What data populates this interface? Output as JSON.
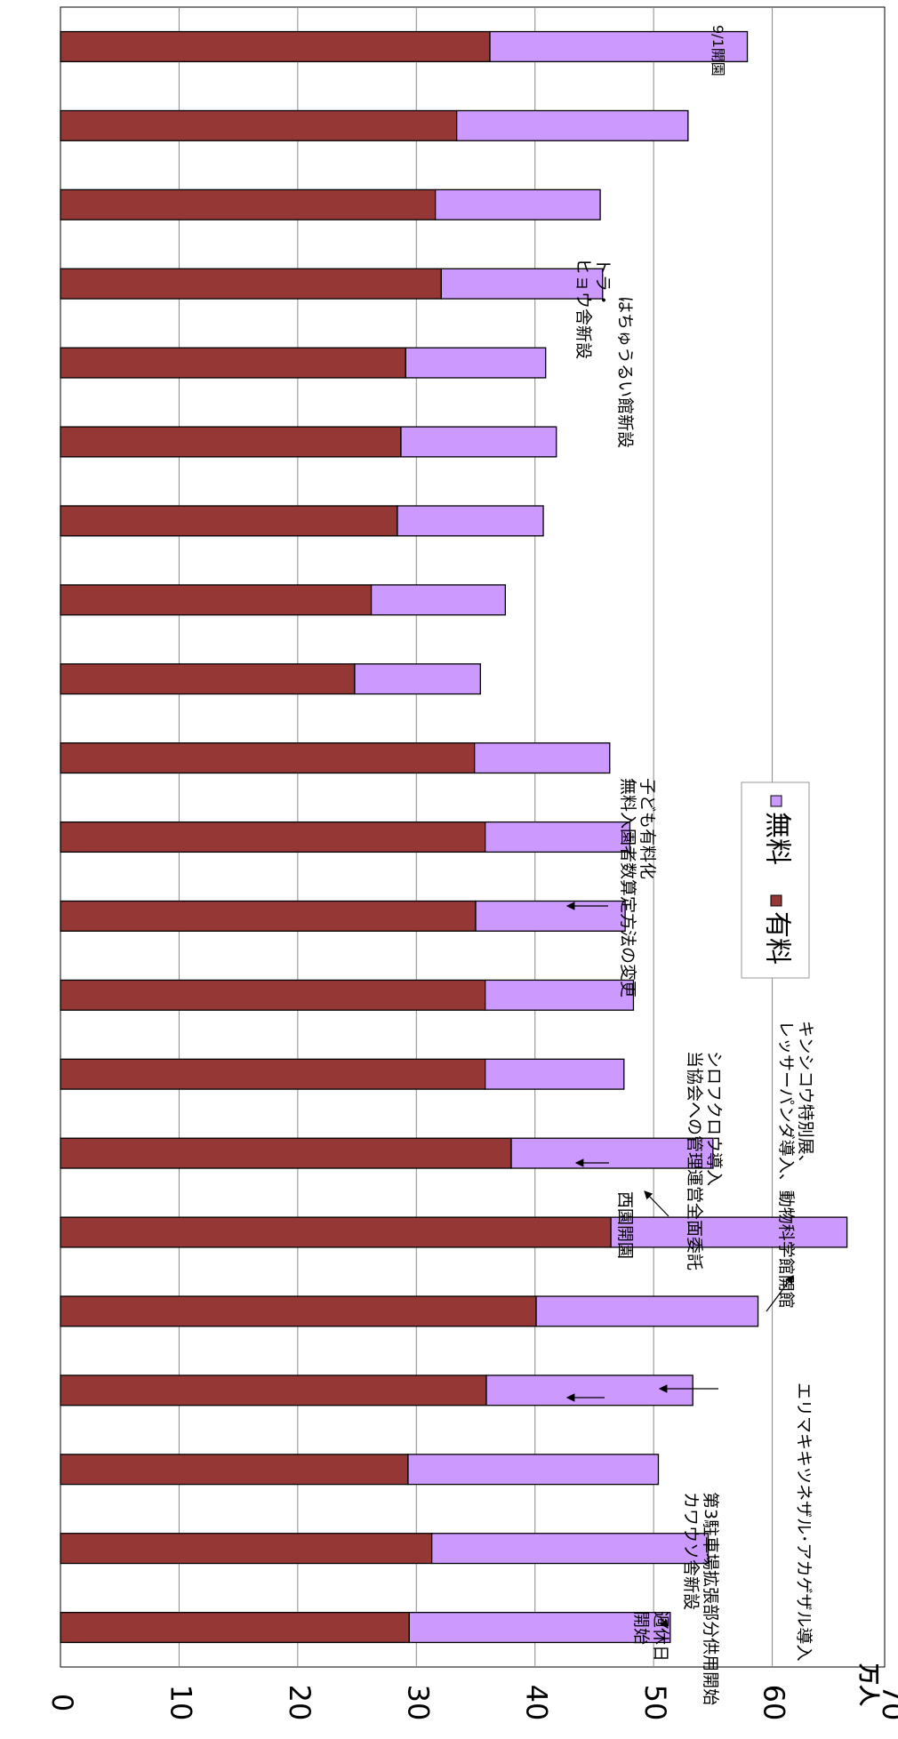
{
  "chart_data": {
    "type": "bar",
    "stacked": true,
    "orientation": "rotated-90",
    "ylabel": "万人",
    "ylim": [
      0,
      70
    ],
    "y_ticks": [
      "0",
      "10",
      "20",
      "30",
      "40",
      "50",
      "60",
      "70"
    ],
    "grid": true,
    "legend_position": "top",
    "series": [
      {
        "name": "有料",
        "color": "#953735",
        "values": [
          36.2,
          33.4,
          31.6,
          32.1,
          29.1,
          28.7,
          28.4,
          26.2,
          24.8,
          34.9,
          35.8,
          35.0,
          35.8,
          35.8,
          38.0,
          46.4,
          40.1,
          35.9,
          29.3,
          31.3,
          29.4
        ]
      },
      {
        "name": "無料",
        "color": "#cc99ff",
        "values": [
          21.7,
          19.5,
          13.9,
          13.6,
          11.8,
          13.1,
          12.3,
          11.3,
          10.6,
          11.4,
          12.2,
          12.6,
          12.5,
          11.7,
          17.0,
          19.9,
          18.7,
          17.4,
          21.1,
          23.3,
          22.0
        ]
      }
    ],
    "annotations": [
      {
        "index": 0,
        "text": "9/1開園"
      },
      {
        "index": 2,
        "text": "トラ・\nヒョウ舎新設"
      },
      {
        "index": 3,
        "text": "はちゅうるい館新設"
      },
      {
        "index": 9,
        "text": "子ども有料化\n無料入園者数算定方法の変更"
      },
      {
        "index": 13,
        "text": "西園開園"
      },
      {
        "index": 14,
        "text": "シロフクロウ導入\n当協会への管理運営全面委託"
      },
      {
        "index": 15,
        "text": "キンシコウ特別展、\nレッサーパンダ導入、動物科学館開館"
      },
      {
        "index": 16,
        "text": "エリマキキツネザル･アカゲザル導入"
      },
      {
        "index": 19,
        "text": "第3駐車場拡張部分供用開始\nカワウソ舎新設"
      },
      {
        "index": 20,
        "text": "週休日\n開始"
      }
    ]
  }
}
